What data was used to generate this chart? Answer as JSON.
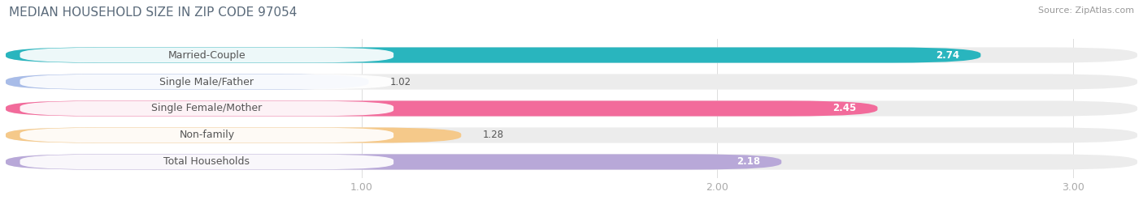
{
  "title": "MEDIAN HOUSEHOLD SIZE IN ZIP CODE 97054",
  "source": "Source: ZipAtlas.com",
  "categories": [
    "Married-Couple",
    "Single Male/Father",
    "Single Female/Mother",
    "Non-family",
    "Total Households"
  ],
  "values": [
    2.74,
    1.02,
    2.45,
    1.28,
    2.18
  ],
  "bar_colors": [
    "#29b5be",
    "#a8bce8",
    "#f26b9b",
    "#f5c98a",
    "#b8a8d8"
  ],
  "bar_bg_color": "#ececec",
  "xlim_start": 0.0,
  "xlim_end": 3.18,
  "xticks": [
    1.0,
    2.0,
    3.0
  ],
  "title_fontsize": 11,
  "source_fontsize": 8,
  "label_fontsize": 9,
  "value_fontsize": 8.5,
  "bar_height": 0.58,
  "background_color": "#ffffff",
  "title_color": "#5a6a7a",
  "source_color": "#999999",
  "label_color": "#555555",
  "tick_color": "#aaaaaa",
  "grid_color": "#dddddd"
}
